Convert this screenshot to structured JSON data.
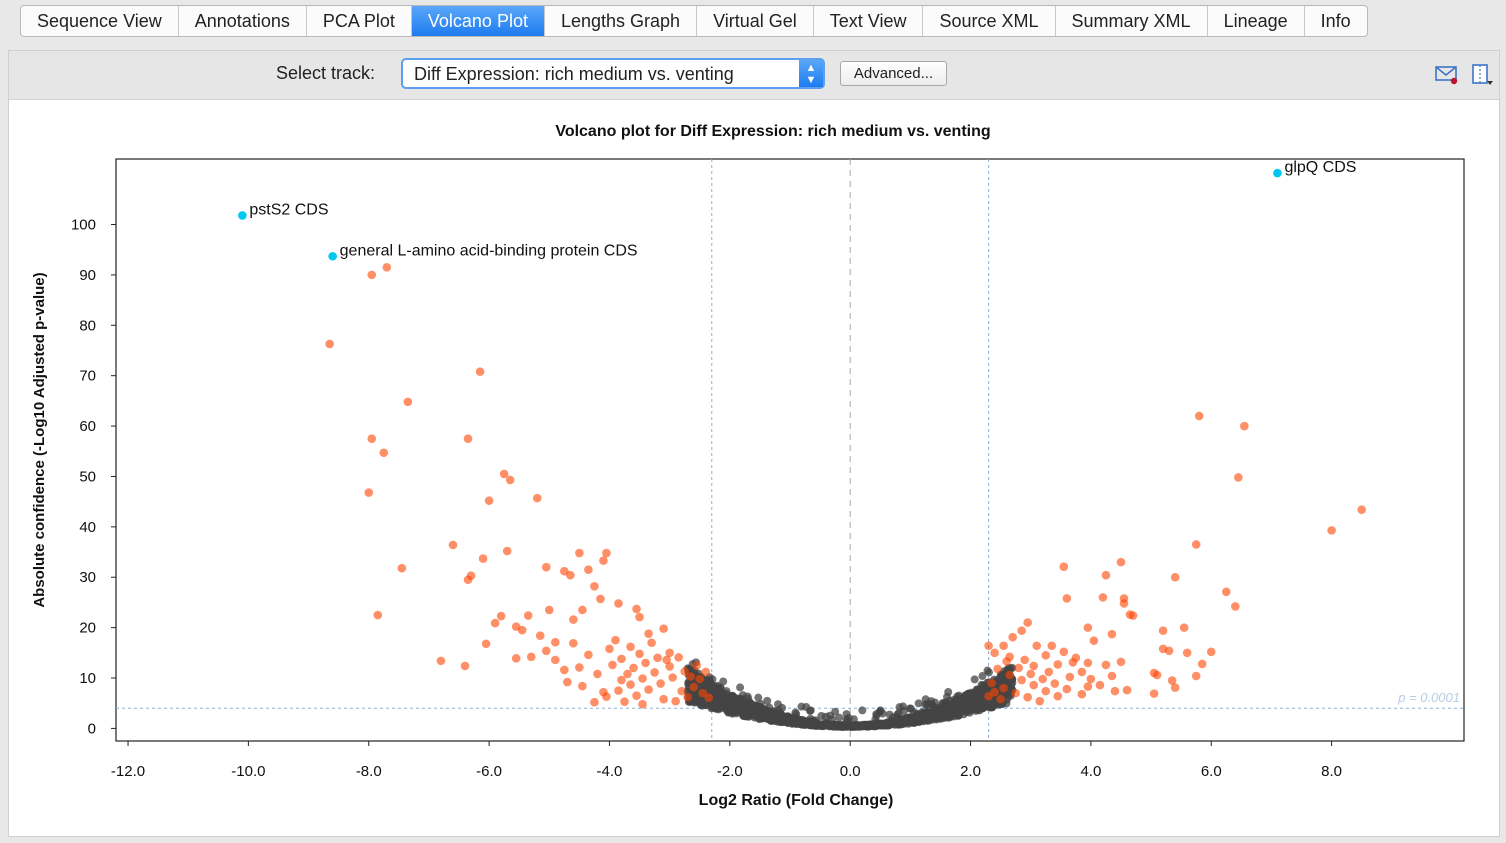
{
  "tabs": [
    {
      "label": "Sequence View",
      "active": false
    },
    {
      "label": "Annotations",
      "active": false
    },
    {
      "label": "PCA Plot",
      "active": false
    },
    {
      "label": "Volcano Plot",
      "active": true
    },
    {
      "label": "Lengths Graph",
      "active": false
    },
    {
      "label": "Virtual Gel",
      "active": false
    },
    {
      "label": "Text View",
      "active": false
    },
    {
      "label": "Source XML",
      "active": false
    },
    {
      "label": "Summary XML",
      "active": false
    },
    {
      "label": "Lineage",
      "active": false
    },
    {
      "label": "Info",
      "active": false
    }
  ],
  "toolbar": {
    "select_label": "Select track:",
    "select_value": "Diff Expression: rich medium vs. venting",
    "advanced_label": "Advanced...",
    "icons": [
      "mail-icon",
      "export-icon"
    ]
  },
  "colors": {
    "accent": "#1e7bf0",
    "significant": "#ff4500",
    "not_significant": "#444444",
    "highlighted": "#00c8f0",
    "threshold_line": "#8fb0d4"
  },
  "chart_data": {
    "type": "scatter",
    "title": "Volcano plot for Diff Expression: rich medium vs. venting",
    "xlabel": "Log2 Ratio (Fold Change)",
    "ylabel": "Absolute confidence (-Log10 Adjusted p-value)",
    "xlim": [
      -12.2,
      10.2
    ],
    "ylim": [
      -2.5,
      113
    ],
    "xticks": [
      -12,
      -10,
      -8,
      -6,
      -4,
      -2,
      0,
      2,
      4,
      6,
      8
    ],
    "xtick_labels": [
      "-12.0",
      "-10.0",
      "-8.0",
      "-6.0",
      "-4.0",
      "-2.0",
      "0.0",
      "2.0",
      "4.0",
      "6.0",
      "8.0"
    ],
    "yticks": [
      0,
      10,
      20,
      30,
      40,
      50,
      60,
      70,
      80,
      90,
      100
    ],
    "fold_change_threshold": [
      -2.3,
      2.3
    ],
    "p_threshold_y": 4,
    "p_threshold_label": "p = 0.0001",
    "grid": false,
    "labeled_points": [
      {
        "x": -10.1,
        "y": 101.8,
        "label": "pstS2 CDS"
      },
      {
        "x": -8.6,
        "y": 93.7,
        "label": "general L-amino acid-binding protein CDS"
      },
      {
        "x": 7.1,
        "y": 110.2,
        "label": "glpQ CDS"
      }
    ],
    "significant_points": [
      [
        -7.95,
        90
      ],
      [
        -7.7,
        91.5
      ],
      [
        -8.65,
        76.3
      ],
      [
        -7.95,
        57.5
      ],
      [
        -7.75,
        54.7
      ],
      [
        -8.0,
        46.8
      ],
      [
        -7.35,
        64.8
      ],
      [
        -7.85,
        22.5
      ],
      [
        -7.45,
        31.8
      ],
      [
        -6.15,
        70.8
      ],
      [
        -6.35,
        57.5
      ],
      [
        -5.75,
        50.5
      ],
      [
        -5.65,
        49.3
      ],
      [
        -6.0,
        45.2
      ],
      [
        -5.2,
        45.7
      ],
      [
        -6.6,
        36.4
      ],
      [
        -5.7,
        35.2
      ],
      [
        -6.1,
        33.7
      ],
      [
        -6.3,
        30.3
      ],
      [
        -6.35,
        29.5
      ],
      [
        -5.05,
        32.0
      ],
      [
        -4.5,
        34.8
      ],
      [
        -4.05,
        34.8
      ],
      [
        -4.1,
        33.3
      ],
      [
        -4.35,
        31.5
      ],
      [
        -4.65,
        30.4
      ],
      [
        -4.75,
        31.2
      ],
      [
        -4.25,
        28.2
      ],
      [
        -6.8,
        13.4
      ],
      [
        -6.4,
        12.4
      ],
      [
        -6.05,
        16.8
      ],
      [
        -5.9,
        20.9
      ],
      [
        -5.8,
        22.3
      ],
      [
        -5.55,
        20.2
      ],
      [
        -5.45,
        19.5
      ],
      [
        -5.35,
        22.4
      ],
      [
        -5.15,
        18.4
      ],
      [
        -5.0,
        23.5
      ],
      [
        -4.9,
        17.1
      ],
      [
        -4.6,
        21.6
      ],
      [
        -4.45,
        23.5
      ],
      [
        -4.15,
        25.7
      ],
      [
        -3.85,
        24.8
      ],
      [
        -3.55,
        23.7
      ],
      [
        -3.5,
        22.1
      ],
      [
        -3.35,
        18.8
      ],
      [
        -3.1,
        19.8
      ],
      [
        -3.3,
        17.0
      ],
      [
        -3.0,
        15.0
      ],
      [
        -3.2,
        14.0
      ],
      [
        -3.4,
        13.0
      ],
      [
        -3.6,
        12.0
      ],
      [
        -3.7,
        10.8
      ],
      [
        -3.8,
        9.6
      ],
      [
        -3.0,
        12.3
      ],
      [
        -3.25,
        11.1
      ],
      [
        -3.45,
        9.9
      ],
      [
        -3.65,
        8.7
      ],
      [
        -3.85,
        7.5
      ],
      [
        -4.05,
        6.3
      ],
      [
        -4.25,
        5.2
      ],
      [
        -2.55,
        12.5
      ],
      [
        -2.75,
        11.3
      ],
      [
        -2.95,
        10.1
      ],
      [
        -3.15,
        8.9
      ],
      [
        -3.35,
        7.7
      ],
      [
        -3.55,
        6.5
      ],
      [
        -3.75,
        5.3
      ],
      [
        -4.7,
        9.2
      ],
      [
        -5.05,
        15.4
      ],
      [
        -5.3,
        14.2
      ],
      [
        -5.55,
        13.9
      ],
      [
        -4.9,
        13.6
      ],
      [
        -4.5,
        12.1
      ],
      [
        -4.2,
        10.8
      ],
      [
        -4.0,
        15.8
      ],
      [
        -4.35,
        14.6
      ],
      [
        -4.6,
        16.9
      ],
      [
        -3.9,
        17.5
      ],
      [
        -3.65,
        16.2
      ],
      [
        -3.5,
        14.8
      ],
      [
        -2.6,
        8.2
      ],
      [
        -2.7,
        6.2
      ],
      [
        -2.8,
        7.4
      ],
      [
        -2.5,
        9.8
      ],
      [
        -2.4,
        11.2
      ],
      [
        -2.45,
        7.0
      ],
      [
        -2.35,
        6.1
      ],
      [
        -2.9,
        5.4
      ],
      [
        -3.1,
        5.8
      ],
      [
        -3.45,
        4.8
      ],
      [
        -4.45,
        8.4
      ],
      [
        -4.75,
        11.6
      ],
      [
        -3.95,
        12.6
      ],
      [
        -3.8,
        13.8
      ],
      [
        -4.1,
        7.2
      ],
      [
        -2.65,
        10.3
      ],
      [
        -3.05,
        13.6
      ],
      [
        -2.85,
        14.1
      ],
      [
        5.8,
        62
      ],
      [
        6.55,
        60
      ],
      [
        6.45,
        49.8
      ],
      [
        8.5,
        43.4
      ],
      [
        8.0,
        39.3
      ],
      [
        5.75,
        36.5
      ],
      [
        3.55,
        32.1
      ],
      [
        4.5,
        33.0
      ],
      [
        4.25,
        30.4
      ],
      [
        5.4,
        30.0
      ],
      [
        6.25,
        27.1
      ],
      [
        3.6,
        25.8
      ],
      [
        4.2,
        26.0
      ],
      [
        4.55,
        25.8
      ],
      [
        4.55,
        24.8
      ],
      [
        6.4,
        24.2
      ],
      [
        4.7,
        22.4
      ],
      [
        4.65,
        22.6
      ],
      [
        3.95,
        20.0
      ],
      [
        4.35,
        18.7
      ],
      [
        4.05,
        17.4
      ],
      [
        5.2,
        19.4
      ],
      [
        5.55,
        20.0
      ],
      [
        5.3,
        15.4
      ],
      [
        5.2,
        15.8
      ],
      [
        5.6,
        15.0
      ],
      [
        5.85,
        12.8
      ],
      [
        6.0,
        15.2
      ],
      [
        5.05,
        11.0
      ],
      [
        5.1,
        10.6
      ],
      [
        5.35,
        9.5
      ],
      [
        5.75,
        10.4
      ],
      [
        5.05,
        6.9
      ],
      [
        5.4,
        8.1
      ],
      [
        4.6,
        7.6
      ],
      [
        4.4,
        7.4
      ],
      [
        4.15,
        8.6
      ],
      [
        3.95,
        8.3
      ],
      [
        4.0,
        9.8
      ],
      [
        3.85,
        11.2
      ],
      [
        3.7,
        13.1
      ],
      [
        3.45,
        12.7
      ],
      [
        3.25,
        14.5
      ],
      [
        3.1,
        16.4
      ],
      [
        2.95,
        21.0
      ],
      [
        2.85,
        19.4
      ],
      [
        2.7,
        18.1
      ],
      [
        2.55,
        16.4
      ],
      [
        2.3,
        16.4
      ],
      [
        2.4,
        15.0
      ],
      [
        2.6,
        13.3
      ],
      [
        2.8,
        12.0
      ],
      [
        3.0,
        10.8
      ],
      [
        3.2,
        9.8
      ],
      [
        3.4,
        8.9
      ],
      [
        3.6,
        7.8
      ],
      [
        2.45,
        11.8
      ],
      [
        2.65,
        10.6
      ],
      [
        2.85,
        9.6
      ],
      [
        3.05,
        8.6
      ],
      [
        3.25,
        7.4
      ],
      [
        3.45,
        6.4
      ],
      [
        2.35,
        9.0
      ],
      [
        2.55,
        8.0
      ],
      [
        2.75,
        7.0
      ],
      [
        2.95,
        6.2
      ],
      [
        3.15,
        5.4
      ],
      [
        2.3,
        6.4
      ],
      [
        2.5,
        5.8
      ],
      [
        3.35,
        16.4
      ],
      [
        3.55,
        15.2
      ],
      [
        3.75,
        14.0
      ],
      [
        3.95,
        13.0
      ],
      [
        4.25,
        12.6
      ],
      [
        4.5,
        13.2
      ],
      [
        3.3,
        11.2
      ],
      [
        2.9,
        13.6
      ],
      [
        2.65,
        14.2
      ],
      [
        3.05,
        12.4
      ],
      [
        3.65,
        10.2
      ],
      [
        4.35,
        10.4
      ],
      [
        3.85,
        6.8
      ],
      [
        2.4,
        7.2
      ]
    ]
  }
}
